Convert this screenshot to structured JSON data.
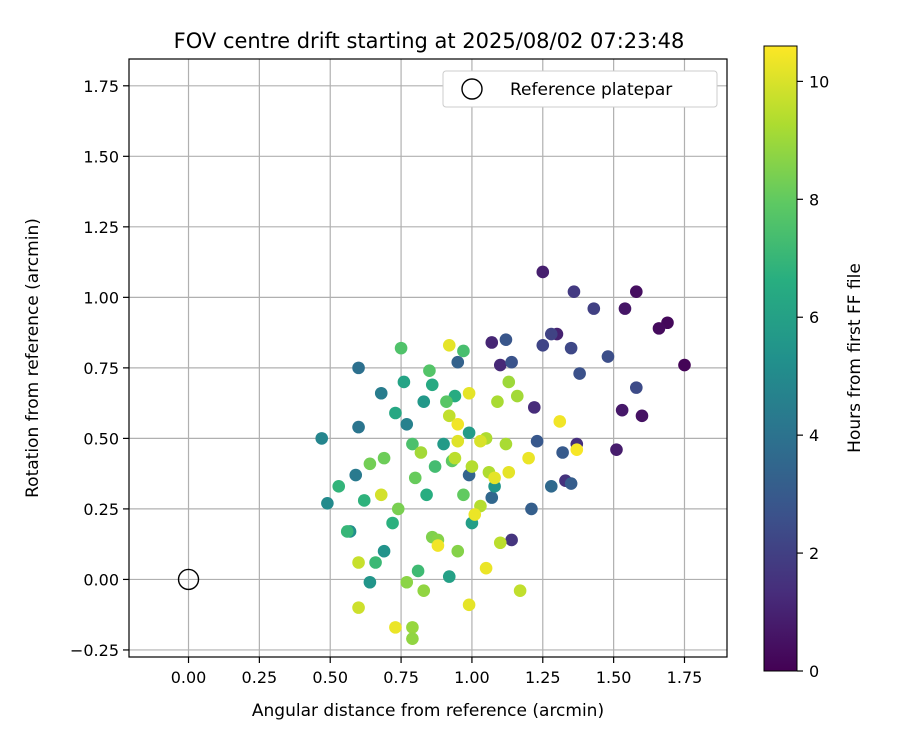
{
  "chart_data": {
    "type": "scatter",
    "title": "FOV centre drift starting at 2025/08/02 07:23:48",
    "xlabel": "Angular distance from reference (arcmin)",
    "ylabel": "Rotation from reference (arcmin)",
    "xlim": [
      -0.21,
      1.9
    ],
    "ylim": [
      -0.275,
      1.845
    ],
    "x_ticks": [
      0.0,
      0.25,
      0.5,
      0.75,
      1.0,
      1.25,
      1.5,
      1.75
    ],
    "x_tick_labels": [
      "0.00",
      "0.25",
      "0.50",
      "0.75",
      "1.00",
      "1.25",
      "1.50",
      "1.75"
    ],
    "y_ticks": [
      -0.25,
      0.0,
      0.25,
      0.5,
      0.75,
      1.0,
      1.25,
      1.5,
      1.75
    ],
    "y_tick_labels": [
      "−0.25",
      "0.00",
      "0.25",
      "0.50",
      "0.75",
      "1.00",
      "1.25",
      "1.50",
      "1.75"
    ],
    "grid": true,
    "legend": {
      "placement": "top-right",
      "entries": [
        "Reference platepar"
      ]
    },
    "reference_point": {
      "x": 0.0,
      "y": 0.0
    },
    "colorbar": {
      "label": "Hours from first FF file",
      "range": [
        0,
        10.6
      ],
      "ticks": [
        0,
        2,
        4,
        6,
        8,
        10
      ],
      "tick_labels": [
        "0",
        "2",
        "4",
        "6",
        "8",
        "10"
      ],
      "colormap": "viridis",
      "colors": [
        "#440154",
        "#472d7b",
        "#3b528b",
        "#2c728e",
        "#21918c",
        "#28ae80",
        "#5ec962",
        "#addc30",
        "#fde725"
      ]
    },
    "series": [
      {
        "points": [
          [
            1.75,
            0.76,
            0.1
          ],
          [
            1.69,
            0.91,
            0.2
          ],
          [
            1.66,
            0.89,
            0.3
          ],
          [
            1.58,
            1.02,
            0.4
          ],
          [
            1.6,
            0.58,
            0.5
          ],
          [
            1.54,
            0.96,
            0.6
          ],
          [
            1.53,
            0.6,
            0.7
          ],
          [
            1.51,
            0.46,
            0.8
          ],
          [
            1.25,
            1.09,
            0.9
          ],
          [
            1.3,
            0.87,
            1.0
          ],
          [
            1.07,
            0.84,
            1.1
          ],
          [
            1.1,
            0.76,
            1.2
          ],
          [
            1.22,
            0.61,
            1.3
          ],
          [
            1.37,
            0.48,
            1.4
          ],
          [
            1.33,
            0.35,
            1.5
          ],
          [
            1.14,
            0.14,
            1.6
          ],
          [
            1.36,
            1.02,
            1.8
          ],
          [
            1.43,
            0.96,
            2.0
          ],
          [
            1.28,
            0.87,
            2.1
          ],
          [
            1.25,
            0.83,
            2.2
          ],
          [
            1.35,
            0.82,
            2.3
          ],
          [
            1.58,
            0.68,
            2.4
          ],
          [
            1.48,
            0.79,
            2.5
          ],
          [
            1.38,
            0.73,
            2.6
          ],
          [
            1.14,
            0.77,
            2.7
          ],
          [
            1.12,
            0.85,
            2.8
          ],
          [
            1.23,
            0.49,
            2.9
          ],
          [
            1.32,
            0.45,
            3.0
          ],
          [
            1.35,
            0.34,
            3.1
          ],
          [
            1.21,
            0.25,
            3.2
          ],
          [
            0.95,
            0.77,
            3.3
          ],
          [
            0.99,
            0.37,
            3.4
          ],
          [
            1.07,
            0.29,
            3.5
          ],
          [
            1.28,
            0.33,
            3.6
          ],
          [
            0.6,
            0.75,
            3.9
          ],
          [
            0.6,
            0.54,
            4.1
          ],
          [
            0.59,
            0.37,
            4.3
          ],
          [
            0.68,
            0.66,
            4.4
          ],
          [
            0.77,
            0.55,
            4.6
          ],
          [
            0.47,
            0.5,
            4.8
          ],
          [
            0.49,
            0.27,
            5.0
          ],
          [
            0.57,
            0.17,
            5.2
          ],
          [
            0.69,
            0.1,
            5.4
          ],
          [
            0.64,
            -0.01,
            5.5
          ],
          [
            0.83,
            0.63,
            5.6
          ],
          [
            0.9,
            0.48,
            5.7
          ],
          [
            0.99,
            0.52,
            5.8
          ],
          [
            1.0,
            0.2,
            5.9
          ],
          [
            0.92,
            0.01,
            6.0
          ],
          [
            1.08,
            0.33,
            5.5
          ],
          [
            0.76,
            0.7,
            6.1
          ],
          [
            0.73,
            0.59,
            6.3
          ],
          [
            0.86,
            0.69,
            6.4
          ],
          [
            0.94,
            0.65,
            6.5
          ],
          [
            0.84,
            0.3,
            6.6
          ],
          [
            0.72,
            0.2,
            6.7
          ],
          [
            0.62,
            0.28,
            6.8
          ],
          [
            0.53,
            0.33,
            6.9
          ],
          [
            0.56,
            0.17,
            7.0
          ],
          [
            0.66,
            0.06,
            7.1
          ],
          [
            0.81,
            0.03,
            7.2
          ],
          [
            0.87,
            0.4,
            7.3
          ],
          [
            0.97,
            0.81,
            7.4
          ],
          [
            0.79,
            0.48,
            7.5
          ],
          [
            0.75,
            0.82,
            7.6
          ],
          [
            0.85,
            0.74,
            7.7
          ],
          [
            0.91,
            0.63,
            7.8
          ],
          [
            0.93,
            0.42,
            7.9
          ],
          [
            0.97,
            0.3,
            8.0
          ],
          [
            0.8,
            0.36,
            8.1
          ],
          [
            0.69,
            0.43,
            8.2
          ],
          [
            0.64,
            0.41,
            8.3
          ],
          [
            0.74,
            0.25,
            8.4
          ],
          [
            0.86,
            0.15,
            8.5
          ],
          [
            0.95,
            0.1,
            8.6
          ],
          [
            0.77,
            -0.01,
            8.7
          ],
          [
            0.83,
            -0.04,
            8.8
          ],
          [
            0.79,
            -0.17,
            8.9
          ],
          [
            0.79,
            -0.21,
            8.8
          ],
          [
            0.88,
            0.14,
            8.6
          ],
          [
            1.13,
            0.7,
            9.0
          ],
          [
            1.16,
            0.65,
            9.1
          ],
          [
            1.12,
            0.48,
            9.2
          ],
          [
            1.06,
            0.38,
            9.3
          ],
          [
            1.03,
            0.26,
            9.4
          ],
          [
            1.1,
            0.13,
            9.5
          ],
          [
            1.17,
            -0.04,
            9.6
          ],
          [
            0.6,
            0.06,
            9.7
          ],
          [
            0.6,
            -0.1,
            9.8
          ],
          [
            0.68,
            0.3,
            9.9
          ],
          [
            0.92,
            0.58,
            9.6
          ],
          [
            0.94,
            0.43,
            9.5
          ],
          [
            1.0,
            0.4,
            9.4
          ],
          [
            1.05,
            0.5,
            9.3
          ],
          [
            1.09,
            0.63,
            9.2
          ],
          [
            0.82,
            0.45,
            9.1
          ],
          [
            0.92,
            0.83,
            10.2
          ],
          [
            0.73,
            -0.17,
            10.3
          ],
          [
            0.95,
            0.55,
            10.4
          ],
          [
            0.99,
            0.66,
            10.2
          ],
          [
            1.2,
            0.43,
            10.3
          ],
          [
            1.31,
            0.56,
            10.4
          ],
          [
            1.37,
            0.46,
            10.5
          ],
          [
            1.08,
            0.36,
            10.2
          ],
          [
            1.05,
            0.04,
            10.3
          ],
          [
            0.99,
            -0.09,
            10.2
          ],
          [
            0.88,
            0.12,
            10.4
          ],
          [
            0.95,
            0.49,
            10.1
          ],
          [
            1.03,
            0.49,
            10.0
          ],
          [
            1.13,
            0.38,
            10.2
          ],
          [
            1.01,
            0.23,
            10.3
          ]
        ]
      }
    ]
  }
}
